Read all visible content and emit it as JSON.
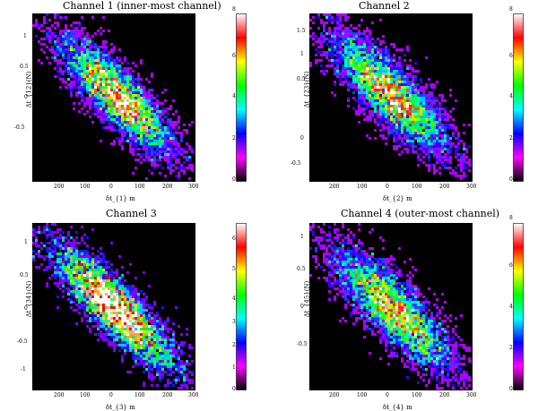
{
  "chart_data": [
    {
      "type": "heatmap",
      "title": "Channel 1 (inner-most channel)",
      "xlabel": "δt_{1} m",
      "ylabel": "Δt_{12}(N)",
      "xticks": [
        "200",
        "100",
        "0",
        "100",
        "200",
        "300"
      ],
      "yticks": [
        "1",
        "0.5",
        "0",
        "-0.5"
      ],
      "colorbar_ticks": [
        "0",
        "2",
        "4",
        "6",
        "8"
      ],
      "colorbar_range": [
        0,
        8
      ],
      "colormap": [
        "#000000",
        "#ff00ff",
        "#0000ff",
        "#00ffff",
        "#00ff00",
        "#ffff00",
        "#ff0000",
        "#ffffff"
      ],
      "background": "#000000",
      "grid": false
    },
    {
      "type": "heatmap",
      "title": "Channel 2",
      "xlabel": "δt_{2} m",
      "ylabel": "Δt_{23}(N)",
      "xticks": [
        "200",
        "100",
        "0",
        "100",
        "200",
        "300"
      ],
      "yticks": [
        "1.5",
        "1",
        "0.5",
        "0",
        "-0.5"
      ],
      "colorbar_ticks": [
        "0",
        "2",
        "4",
        "6",
        "8"
      ],
      "colorbar_range": [
        0,
        8
      ],
      "colormap": [
        "#000000",
        "#ff00ff",
        "#0000ff",
        "#00ffff",
        "#00ff00",
        "#ffff00",
        "#ff0000",
        "#ffffff"
      ],
      "background": "#000000",
      "grid": false
    },
    {
      "type": "heatmap",
      "title": "Channel 3",
      "xlabel": "δt_{3} m",
      "ylabel": "Δt_{34}(N)",
      "xticks": [
        "200",
        "100",
        "0",
        "100",
        "200",
        "300"
      ],
      "yticks": [
        "1",
        "0.5",
        "0",
        "-0.5",
        "-1"
      ],
      "colorbar_ticks": [
        "0",
        "1",
        "2",
        "3",
        "4",
        "5",
        "6"
      ],
      "colorbar_range": [
        0,
        6
      ],
      "colormap": [
        "#000000",
        "#ff00ff",
        "#0000ff",
        "#00ffff",
        "#00ff00",
        "#ffff00",
        "#ff0000",
        "#ffffff"
      ],
      "background": "#000000",
      "grid": false
    },
    {
      "type": "heatmap",
      "title": "Channel 4 (outer-most channel)",
      "xlabel": "δt_{4} m",
      "ylabel": "Δt_{45}(N)",
      "xticks": [
        "200",
        "100",
        "0",
        "100",
        "200",
        "300"
      ],
      "yticks": [
        "1",
        "0.5",
        "0",
        "-0.5"
      ],
      "colorbar_ticks": [
        "0",
        "2",
        "4",
        "6",
        "8"
      ],
      "colorbar_range": [
        0,
        8
      ],
      "colormap": [
        "#000000",
        "#ff00ff",
        "#0000ff",
        "#00ffff",
        "#00ff00",
        "#ffff00",
        "#ff0000",
        "#ffffff"
      ],
      "background": "#000000",
      "grid": false
    }
  ]
}
